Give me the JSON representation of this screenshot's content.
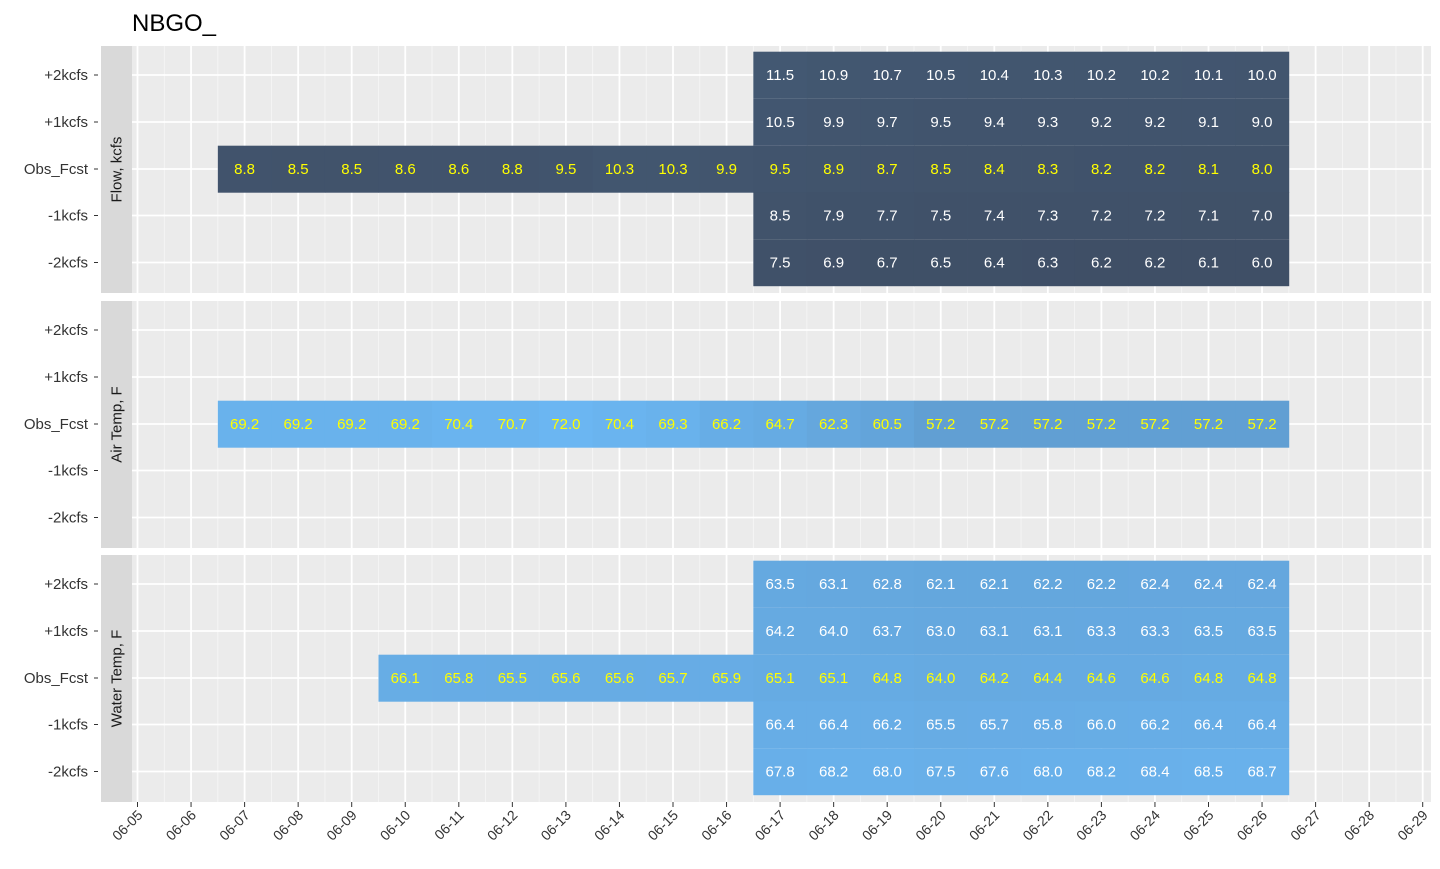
{
  "chart_data": {
    "type": "heatmap",
    "title": "NBGO_",
    "x_dates": [
      "06-05",
      "06-06",
      "06-07",
      "06-08",
      "06-09",
      "06-10",
      "06-11",
      "06-12",
      "06-13",
      "06-14",
      "06-15",
      "06-16",
      "06-17",
      "06-18",
      "06-19",
      "06-20",
      "06-21",
      "06-22",
      "06-23",
      "06-24",
      "06-25",
      "06-26",
      "06-27",
      "06-28",
      "06-29"
    ],
    "y_levels": [
      "+2kcfs",
      "+1kcfs",
      "Obs_Fcst",
      "-1kcfs",
      "-2kcfs"
    ],
    "panels": [
      {
        "strip": "Flow, kcfs",
        "rows": [
          {
            "level": "+2kcfs",
            "start": "06-17",
            "values": [
              11.5,
              10.9,
              10.7,
              10.5,
              10.4,
              10.3,
              10.2,
              10.2,
              10.1,
              10.0
            ]
          },
          {
            "level": "+1kcfs",
            "start": "06-17",
            "values": [
              10.5,
              9.9,
              9.7,
              9.5,
              9.4,
              9.3,
              9.2,
              9.2,
              9.1,
              9.0
            ]
          },
          {
            "level": "Obs_Fcst",
            "start": "06-07",
            "values": [
              8.8,
              8.5,
              8.5,
              8.6,
              8.6,
              8.8,
              9.5,
              10.3,
              10.3,
              9.9,
              9.5,
              8.9,
              8.7,
              8.5,
              8.4,
              8.3,
              8.2,
              8.2,
              8.1,
              8.0
            ]
          },
          {
            "level": "-1kcfs",
            "start": "06-17",
            "values": [
              8.5,
              7.9,
              7.7,
              7.5,
              7.4,
              7.3,
              7.2,
              7.2,
              7.1,
              7.0
            ]
          },
          {
            "level": "-2kcfs",
            "start": "06-17",
            "values": [
              7.5,
              6.9,
              6.7,
              6.5,
              6.4,
              6.3,
              6.2,
              6.2,
              6.1,
              6.0
            ]
          }
        ]
      },
      {
        "strip": "Air Temp, F",
        "rows": [
          {
            "level": "Obs_Fcst",
            "start": "06-07",
            "values": [
              69.2,
              69.2,
              69.2,
              69.2,
              70.4,
              70.7,
              72.0,
              70.4,
              69.3,
              66.2,
              64.7,
              62.3,
              60.5,
              57.2,
              57.2,
              57.2,
              57.2,
              57.2,
              57.2,
              57.2
            ]
          }
        ]
      },
      {
        "strip": "Water Temp, F",
        "rows": [
          {
            "level": "+2kcfs",
            "start": "06-17",
            "values": [
              63.5,
              63.1,
              62.8,
              62.1,
              62.1,
              62.2,
              62.2,
              62.4,
              62.4,
              62.4
            ]
          },
          {
            "level": "+1kcfs",
            "start": "06-17",
            "values": [
              64.2,
              64.0,
              63.7,
              63.0,
              63.1,
              63.1,
              63.3,
              63.3,
              63.5,
              63.5
            ]
          },
          {
            "level": "Obs_Fcst",
            "start": "06-10",
            "values": [
              66.1,
              65.8,
              65.5,
              65.6,
              65.6,
              65.7,
              65.9,
              65.1,
              65.1,
              64.8,
              64.0,
              64.2,
              64.4,
              64.6,
              64.6,
              64.8,
              64.8
            ]
          },
          {
            "level": "-1kcfs",
            "start": "06-17",
            "values": [
              66.4,
              66.4,
              66.2,
              65.5,
              65.7,
              65.8,
              66.0,
              66.2,
              66.4,
              66.4
            ]
          },
          {
            "level": "-2kcfs",
            "start": "06-17",
            "values": [
              67.8,
              68.2,
              68.0,
              67.5,
              67.6,
              68.0,
              68.2,
              68.4,
              68.5,
              68.7
            ]
          }
        ]
      }
    ],
    "colors": {
      "panel_bg": "#EBEBEB",
      "grid": "#FFFFFF",
      "strip_bg": "#D9D9D9",
      "obs_text": "#FFFF00",
      "scenario_text": "#FFFFFF",
      "tile_low": "#3F4F66",
      "tile_high": "#6BB6F2"
    },
    "fill_range": [
      6.0,
      72.0
    ],
    "grid": true
  }
}
